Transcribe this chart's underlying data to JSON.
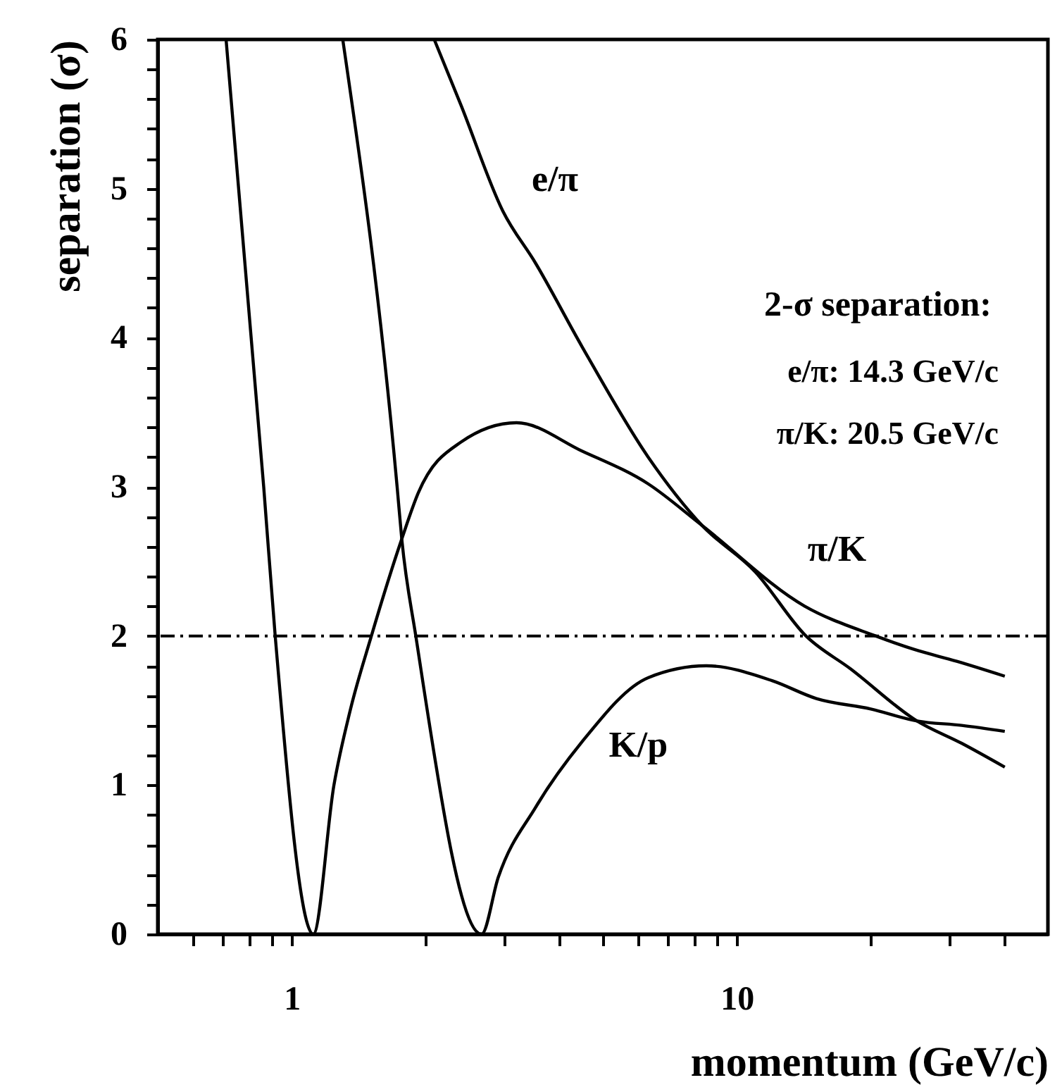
{
  "chart_data": {
    "type": "line",
    "xlabel": "momentum (GeV/c)",
    "ylabel": "separation (σ)",
    "log": "x",
    "grid": false,
    "marker": "none",
    "line_style": "solid",
    "xlim": [
      0.5,
      50
    ],
    "ylim": [
      0,
      6
    ],
    "xticks": [
      {
        "value": 0.6,
        "label": null
      },
      {
        "value": 0.7,
        "label": null
      },
      {
        "value": 0.8,
        "label": null
      },
      {
        "value": 0.9,
        "label": null
      },
      1,
      {
        "value": 2,
        "label": null
      },
      {
        "value": 3,
        "label": null
      },
      {
        "value": 4,
        "label": null
      },
      {
        "value": 5,
        "label": null
      },
      {
        "value": 6,
        "label": null
      },
      {
        "value": 7,
        "label": null
      },
      {
        "value": 8,
        "label": null
      },
      {
        "value": 9,
        "label": null
      },
      10,
      {
        "value": 20,
        "label": null
      },
      {
        "value": 30,
        "label": null
      },
      {
        "value": 40,
        "label": null
      }
    ],
    "yticks": [
      0,
      {
        "value": 0.2,
        "label": null
      },
      {
        "value": 0.4,
        "label": null
      },
      {
        "value": 0.6,
        "label": null
      },
      {
        "value": 0.8,
        "label": null
      },
      1,
      {
        "value": 1.2,
        "label": null
      },
      {
        "value": 1.4,
        "label": null
      },
      {
        "value": 1.6,
        "label": null
      },
      {
        "value": 1.8,
        "label": null
      },
      2,
      {
        "value": 2.2,
        "label": null
      },
      {
        "value": 2.4,
        "label": null
      },
      {
        "value": 2.6,
        "label": null
      },
      {
        "value": 2.8,
        "label": null
      },
      3,
      {
        "value": 3.2,
        "label": null
      },
      {
        "value": 3.4,
        "label": null
      },
      {
        "value": 3.6,
        "label": null
      },
      {
        "value": 3.8,
        "label": null
      },
      4,
      {
        "value": 4.2,
        "label": null
      },
      {
        "value": 4.4,
        "label": null
      },
      {
        "value": 4.6,
        "label": null
      },
      {
        "value": 4.8,
        "label": null
      },
      5,
      {
        "value": 5.2,
        "label": null
      },
      {
        "value": 5.4,
        "label": null
      },
      {
        "value": 5.6,
        "label": null
      },
      {
        "value": 5.8,
        "label": null
      },
      6
    ],
    "series": [
      {
        "name": "e/π",
        "color": "#000000",
        "x": [
          2.09,
          2.4,
          2.98,
          3.53,
          4.49,
          6.32,
          8.36,
          11,
          14.3,
          18,
          25.4,
          32,
          40
        ],
        "values": [
          6,
          5.56,
          4.85,
          4.5,
          3.94,
          3.2,
          2.74,
          2.43,
          2,
          1.78,
          1.43,
          1.28,
          1.12
        ]
      },
      {
        "name": "π/K",
        "color": "#000000",
        "x": [
          0.712,
          0.865,
          0.918,
          1.118,
          1.244,
          1.353,
          1.51,
          1.767,
          1.925,
          2.4,
          3.2,
          4.49,
          6.32,
          8.36,
          14.2,
          20.5,
          25,
          31.2,
          40
        ],
        "values": [
          6,
          3,
          2,
          0,
          1,
          1.5,
          2,
          2.65,
          2.96,
          3.3,
          3.43,
          3.24,
          3.02,
          2.74,
          2.2,
          2,
          1.91,
          1.83,
          1.73
        ]
      },
      {
        "name": "K/p",
        "color": "#000000",
        "x": [
          1.302,
          1.725,
          1.767,
          1.9,
          2.67,
          2.91,
          3.53,
          4.49,
          6.32,
          8.54,
          12,
          15.1,
          20,
          25.4,
          32,
          40
        ],
        "values": [
          6,
          3,
          2.65,
          2,
          0,
          0.38,
          0.85,
          1.29,
          1.72,
          1.8,
          1.7,
          1.58,
          1.51,
          1.43,
          1.4,
          1.36
        ]
      }
    ],
    "ref_lines": [
      {
        "axis": "y",
        "value": 2,
        "color": "#000000",
        "line_style": "dashed"
      }
    ],
    "annotations": [
      "2-σ separation:",
      "e/π: 14.3 GeV/c",
      "π/K: 20.5 GeV/c"
    ]
  }
}
